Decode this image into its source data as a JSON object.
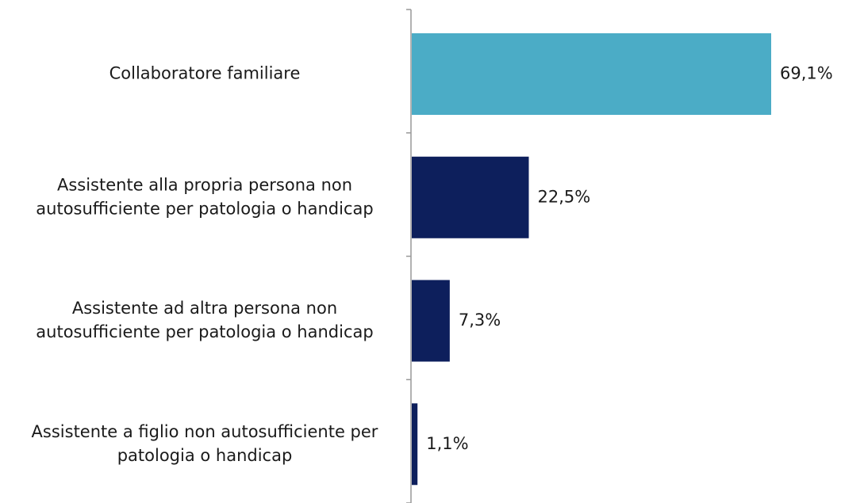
{
  "chart_data": {
    "type": "bar",
    "orientation": "horizontal",
    "categories": [
      [
        "Collaboratore familiare"
      ],
      [
        "Assistente alla propria persona non",
        "autosufficiente per patologia o handicap"
      ],
      [
        "Assistente ad altra persona non",
        "autosufficiente per patologia o handicap"
      ],
      [
        "Assistente a figlio non autosufficiente per",
        "patologia o handicap"
      ]
    ],
    "values": [
      69.1,
      22.5,
      7.3,
      1.1
    ],
    "value_labels": [
      "69,1%",
      "22,5%",
      "7,3%",
      "1,1%"
    ],
    "bar_colors": [
      "#4BACC6",
      "#0D1F5C",
      "#0D1F5C",
      "#0D1F5C"
    ],
    "axis_color": "#999999",
    "xlim": [
      0,
      69.1
    ],
    "grid": false,
    "legend": "none",
    "title": "",
    "xlabel": "",
    "ylabel": ""
  }
}
